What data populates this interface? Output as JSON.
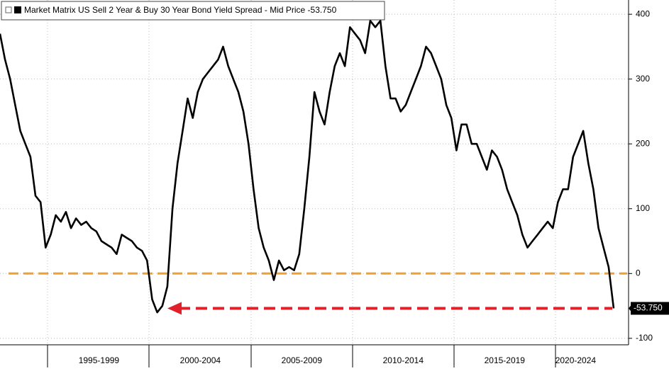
{
  "chart_data": {
    "type": "line",
    "title": "Market Matrix US Sell 2 Year & Buy 30 Year Bond Yield Spread - Mid Price -53.750",
    "categories": [
      null,
      null,
      null,
      null,
      null,
      null,
      null,
      null,
      null,
      null,
      null,
      null,
      null,
      null,
      null,
      null,
      null,
      null,
      null,
      "1995-1999",
      null,
      null,
      null,
      null,
      null,
      null,
      null,
      null,
      null,
      null,
      null,
      null,
      null,
      null,
      null,
      null,
      null,
      null,
      null,
      "2000-2004",
      null,
      null,
      null,
      null,
      null,
      null,
      null,
      null,
      null,
      null,
      null,
      null,
      null,
      null,
      null,
      null,
      null,
      null,
      null,
      "2005-2009",
      null,
      null,
      null,
      null,
      null,
      null,
      null,
      null,
      null,
      null,
      null,
      null,
      null,
      null,
      null,
      null,
      null,
      null,
      null,
      "2010-2014",
      null,
      null,
      null,
      null,
      null,
      null,
      null,
      null,
      null,
      null,
      null,
      null,
      null,
      null,
      null,
      null,
      null,
      null,
      null,
      "2015-2019",
      null,
      null,
      null,
      null,
      null,
      null,
      null,
      null,
      null,
      null,
      null,
      null,
      null,
      "2020-2024",
      null,
      null,
      null,
      null,
      null,
      null,
      null,
      null
    ],
    "series": [
      {
        "name": "Market Matrix US Sell 2 Year & Buy 30 Year Bond Yield Spread - Mid Price",
        "color": "#000000",
        "values": [
          370,
          330,
          300,
          260,
          220,
          200,
          180,
          120,
          110,
          40,
          60,
          90,
          80,
          95,
          70,
          85,
          75,
          80,
          70,
          65,
          50,
          45,
          40,
          30,
          60,
          55,
          50,
          40,
          35,
          20,
          -40,
          -60,
          -50,
          -20,
          100,
          170,
          220,
          270,
          240,
          280,
          300,
          310,
          320,
          330,
          350,
          320,
          300,
          280,
          250,
          200,
          130,
          70,
          40,
          20,
          -10,
          20,
          5,
          10,
          5,
          30,
          100,
          180,
          280,
          250,
          230,
          280,
          320,
          340,
          320,
          380,
          370,
          360,
          340,
          390,
          380,
          390,
          320,
          270,
          270,
          250,
          260,
          280,
          300,
          320,
          350,
          340,
          320,
          300,
          260,
          240,
          190,
          230,
          230,
          200,
          200,
          180,
          160,
          190,
          180,
          160,
          130,
          110,
          90,
          60,
          40,
          50,
          60,
          70,
          80,
          70,
          110,
          130,
          130,
          180,
          200,
          220,
          170,
          130,
          70,
          40,
          10,
          -53.75
        ],
        "value_labels": [
          null,
          null,
          null,
          null,
          null,
          null,
          null,
          null,
          null,
          null,
          null,
          null,
          null,
          null,
          null,
          null,
          null,
          null,
          null,
          null,
          null,
          null,
          null,
          null,
          null,
          null,
          null,
          null,
          null,
          null,
          null,
          null,
          null,
          null,
          null,
          null,
          null,
          null,
          null,
          null,
          null,
          null,
          null,
          null,
          null,
          null,
          null,
          null,
          null,
          null,
          null,
          null,
          null,
          null,
          null,
          null,
          null,
          null,
          null,
          null,
          null,
          null,
          null,
          null,
          null,
          null,
          null,
          null,
          null,
          null,
          null,
          null,
          null,
          null,
          null,
          null,
          null,
          null,
          null,
          null,
          null,
          null,
          null,
          null,
          null,
          null,
          null,
          null,
          null,
          null,
          null,
          null,
          null,
          null,
          null,
          null,
          null,
          null,
          null,
          null,
          null,
          null,
          null,
          null,
          null,
          null,
          null,
          null,
          null,
          null,
          null,
          null,
          null,
          null,
          null,
          null,
          null,
          null,
          null,
          null,
          null,
          "-53.750"
        ]
      }
    ],
    "ylim": [
      -110,
      422
    ],
    "yticks": [
      -100,
      0,
      100,
      200,
      300,
      400
    ],
    "grid": true
  }
}
